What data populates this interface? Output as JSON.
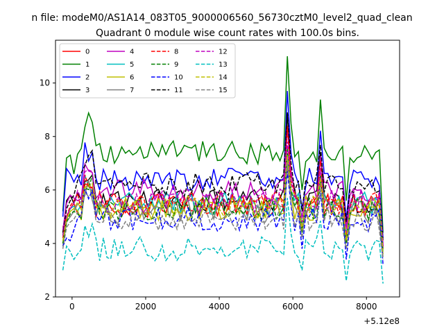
{
  "chart_data": {
    "type": "line",
    "suptitle": "n file: modeM0/AS1A14_083T05_9000006560_56730cztM0_level2_quad_clean",
    "title": "Quadrant 0 module wise count rates with 100.0s bins.",
    "xlabel": "",
    "ylabel": "",
    "x_offset_label": "+5.12e8",
    "xlim": [
      -450,
      8900
    ],
    "ylim": [
      2,
      11.6
    ],
    "xticks": [
      0,
      2000,
      4000,
      6000,
      8000
    ],
    "xtick_labels": [
      "0",
      "2000",
      "4000",
      "6000",
      "8000"
    ],
    "yticks": [
      2,
      4,
      6,
      8,
      10
    ],
    "ytick_labels": [
      "2",
      "4",
      "6",
      "8",
      "10"
    ],
    "grid": false,
    "legend_position": "top-left",
    "x_start": -250,
    "x_step": 100,
    "n_points": 88,
    "series": [
      {
        "name": "0",
        "color": "#ff0000",
        "dash": "solid",
        "mean": 5.4,
        "lead": [
          4.6,
          5.0,
          5.3,
          5.5
        ],
        "peak": 6.9,
        "dip": 4.2,
        "end": 3.8,
        "seed": 3
      },
      {
        "name": "1",
        "color": "#008000",
        "dash": "solid",
        "mean": 7.4,
        "lead": [
          5.2,
          7.2,
          7.3,
          6.6
        ],
        "peak": 11.0,
        "dip": 5.6,
        "end": 4.4,
        "seed": 7
      },
      {
        "name": "2",
        "color": "#0000ff",
        "dash": "solid",
        "mean": 6.4,
        "lead": [
          5.0,
          6.8,
          6.6,
          6.3
        ],
        "peak": 9.7,
        "dip": 4.9,
        "end": 4.2,
        "seed": 11
      },
      {
        "name": "3",
        "color": "#000000",
        "dash": "solid",
        "mean": 5.6,
        "lead": [
          4.4,
          5.6,
          5.8,
          5.5
        ],
        "peak": 8.9,
        "dip": 4.3,
        "end": 3.9,
        "seed": 13
      },
      {
        "name": "4",
        "color": "#bf00bf",
        "dash": "solid",
        "mean": 6.0,
        "lead": [
          4.5,
          5.5,
          5.8,
          5.7
        ],
        "peak": 8.3,
        "dip": 4.6,
        "end": 4.0,
        "seed": 17
      },
      {
        "name": "5",
        "color": "#00bfbf",
        "dash": "solid",
        "mean": 5.5,
        "lead": [
          4.2,
          5.0,
          5.3,
          5.4
        ],
        "peak": 7.1,
        "dip": 4.3,
        "end": 3.7,
        "seed": 19
      },
      {
        "name": "6",
        "color": "#bfbf00",
        "dash": "solid",
        "mean": 5.3,
        "lead": [
          4.0,
          4.9,
          5.2,
          5.3
        ],
        "peak": 7.4,
        "dip": 4.1,
        "end": 3.6,
        "seed": 23
      },
      {
        "name": "7",
        "color": "#808080",
        "dash": "solid",
        "mean": 5.2,
        "lead": [
          3.9,
          4.8,
          5.0,
          5.2
        ],
        "peak": 7.2,
        "dip": 4.0,
        "end": 3.5,
        "seed": 29
      },
      {
        "name": "8",
        "color": "#ff0000",
        "dash": "dashed",
        "mean": 5.5,
        "lead": [
          4.2,
          5.0,
          5.4,
          5.6
        ],
        "peak": 8.4,
        "dip": 4.2,
        "end": 3.8,
        "seed": 31
      },
      {
        "name": "9",
        "color": "#008000",
        "dash": "dashed",
        "mean": 5.3,
        "lead": [
          4.0,
          4.8,
          5.1,
          5.2
        ],
        "peak": 7.6,
        "dip": 4.0,
        "end": 3.7,
        "seed": 37
      },
      {
        "name": "10",
        "color": "#0000ff",
        "dash": "dashed",
        "mean": 4.9,
        "lead": [
          3.9,
          4.2,
          4.1,
          4.5
        ],
        "peak": 6.7,
        "dip": 3.4,
        "end": 3.2,
        "seed": 41
      },
      {
        "name": "11",
        "color": "#000000",
        "dash": "dashed",
        "mean": 6.2,
        "lead": [
          4.3,
          5.3,
          5.6,
          5.8
        ],
        "peak": 8.9,
        "dip": 4.8,
        "end": 4.1,
        "seed": 43
      },
      {
        "name": "12",
        "color": "#bf00bf",
        "dash": "dashed",
        "mean": 5.6,
        "lead": [
          4.3,
          5.0,
          5.3,
          5.5
        ],
        "peak": 7.8,
        "dip": 4.4,
        "end": 3.9,
        "seed": 47
      },
      {
        "name": "13",
        "color": "#00bfbf",
        "dash": "dashed",
        "mean": 3.8,
        "lead": [
          3.0,
          3.9,
          3.7,
          3.4
        ],
        "peak": 5.7,
        "dip": 2.6,
        "end": 2.5,
        "seed": 53
      },
      {
        "name": "14",
        "color": "#bfbf00",
        "dash": "dashed",
        "mean": 5.4,
        "lead": [
          4.1,
          4.9,
          5.2,
          5.3
        ],
        "peak": 7.3,
        "dip": 4.1,
        "end": 3.6,
        "seed": 59
      },
      {
        "name": "15",
        "color": "#808080",
        "dash": "dashed",
        "mean": 4.9,
        "lead": [
          3.8,
          4.6,
          4.8,
          4.9
        ],
        "peak": 7.0,
        "dip": 3.8,
        "end": 3.4,
        "seed": 61
      }
    ]
  }
}
